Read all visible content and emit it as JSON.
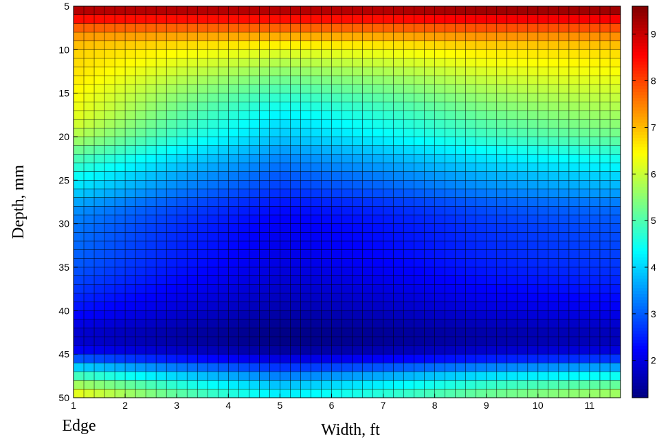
{
  "chart_data": {
    "type": "heatmap",
    "title": "",
    "xlabel": "Width, ft",
    "ylabel": "Depth, mm",
    "x_annotation": "Edge",
    "x_ticks": [
      1,
      2,
      3,
      4,
      5,
      6,
      7,
      8,
      9,
      10,
      11
    ],
    "y_ticks": [
      5,
      10,
      15,
      20,
      25,
      30,
      35,
      40,
      45,
      50
    ],
    "xlim": [
      1,
      11.6
    ],
    "ylim": [
      5,
      50
    ],
    "y_reversed": true,
    "colorbar": {
      "ticks": [
        2,
        3,
        4,
        5,
        6,
        7,
        8,
        9
      ],
      "range": [
        1.2,
        9.6
      ],
      "colormap": "jet"
    },
    "grid": true,
    "grid_x": {
      "start": 1,
      "end": 11.6,
      "step": 0.2
    },
    "grid_y": {
      "start": 5,
      "end": 50,
      "step": 1
    },
    "profile_depth": [
      5,
      6,
      8,
      10,
      12,
      15,
      18,
      20,
      22,
      25,
      28,
      30,
      33,
      35,
      37,
      40,
      42,
      43,
      44,
      45,
      46,
      47,
      48,
      49,
      50
    ],
    "profile_value": [
      9.5,
      8.8,
      7.4,
      6.4,
      5.9,
      5.2,
      4.6,
      4.3,
      3.8,
      3.2,
      2.6,
      2.4,
      2.3,
      2.2,
      2.05,
      1.75,
      1.45,
      1.35,
      1.45,
      1.8,
      2.6,
      3.3,
      4.0,
      4.5,
      4.8
    ],
    "width_scaling": [
      {
        "x": 1,
        "mid": 1.35,
        "top": 1.0
      },
      {
        "x": 3,
        "mid": 1.1,
        "top": 1.0
      },
      {
        "x": 5,
        "mid": 0.9,
        "top": 1.0
      },
      {
        "x": 7,
        "mid": 1.0,
        "top": 1.0
      },
      {
        "x": 9,
        "mid": 1.12,
        "top": 1.02
      },
      {
        "x": 11.6,
        "mid": 1.22,
        "top": 1.02
      }
    ]
  }
}
